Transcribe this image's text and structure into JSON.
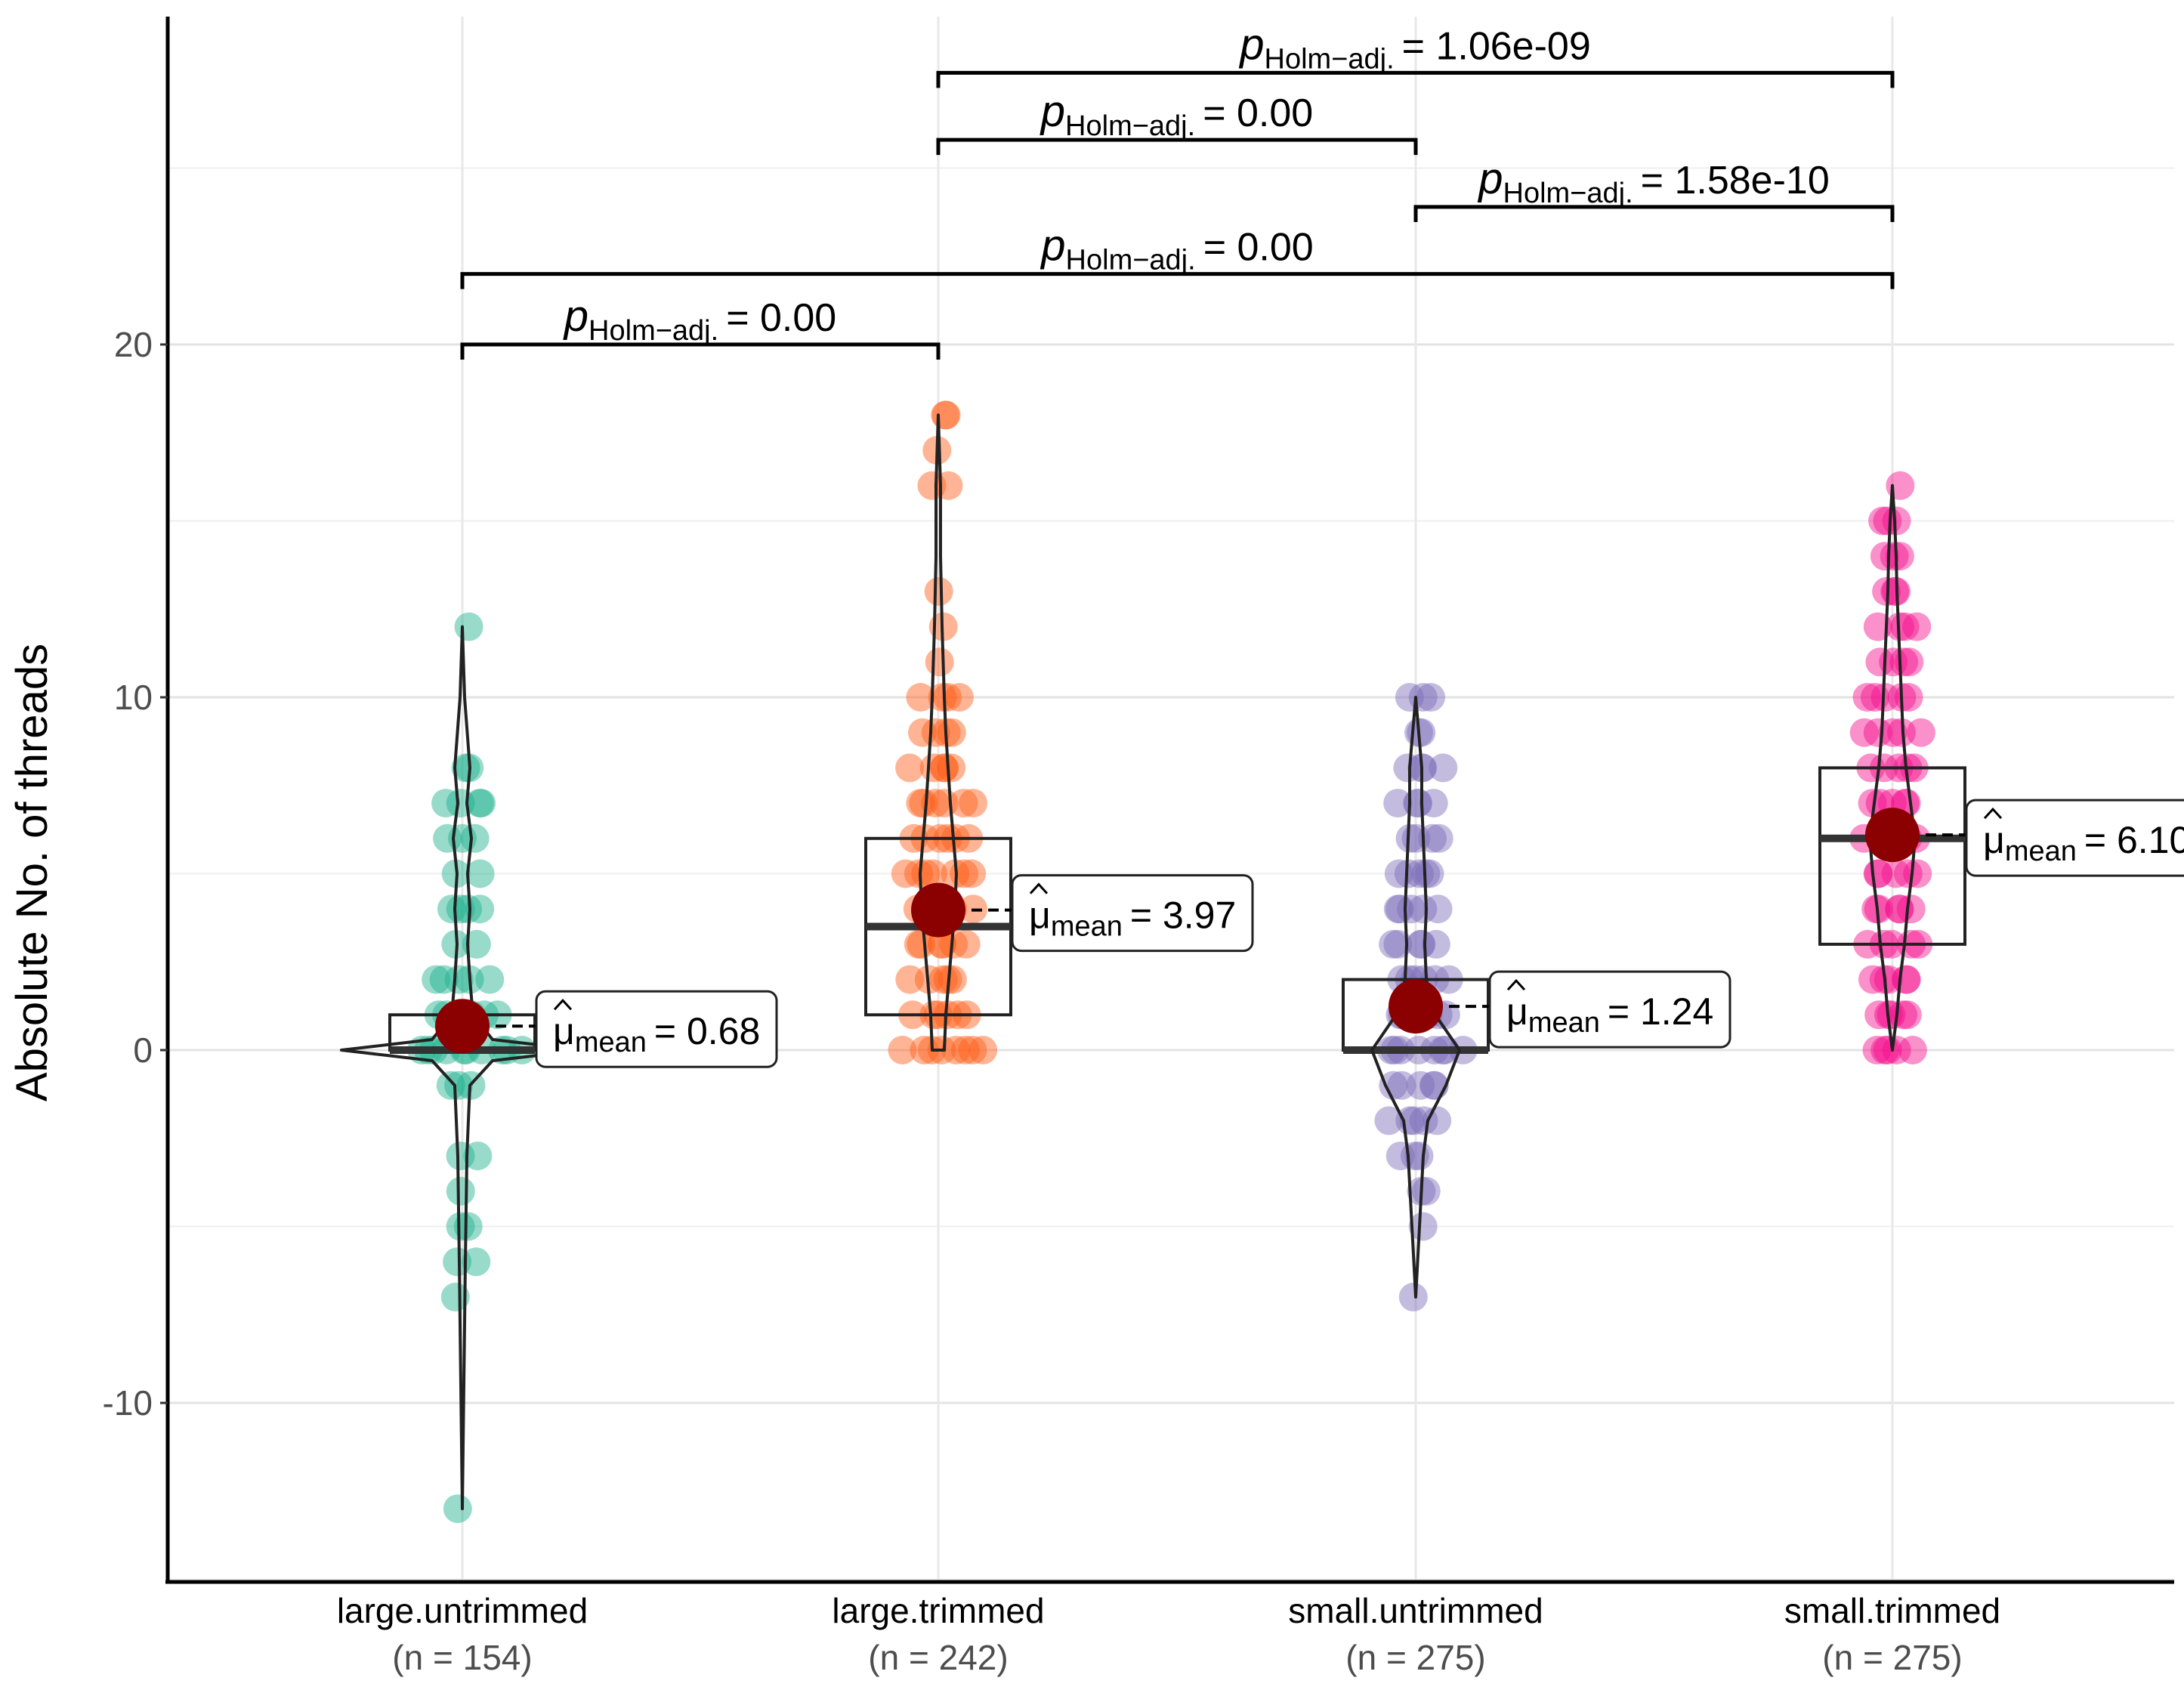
{
  "chart_data": {
    "type": "violin-box-scatter",
    "title": "",
    "xlabel": "",
    "ylabel": "Absolute No. of threads",
    "ylim": [
      -15,
      28
    ],
    "yticks": [
      -10,
      0,
      10,
      20
    ],
    "grid": true,
    "groups": [
      {
        "name": "large.untrimmed",
        "n_label": "(n = 154)",
        "color": "#1AAF8B",
        "mean": 0.68,
        "mean_label": "= 0.68",
        "box": {
          "q1": 0,
          "median": 0,
          "q3": 1,
          "whisker_low": -13,
          "whisker_high": 12
        },
        "points": [
          12,
          8,
          8,
          7,
          7,
          7,
          7,
          6,
          6,
          6,
          5,
          5,
          4,
          4,
          4,
          4,
          3,
          3,
          2,
          2,
          2,
          2,
          2,
          1,
          1,
          1,
          1,
          1,
          1,
          0,
          0,
          0,
          0,
          0,
          0,
          0,
          0,
          0,
          0,
          -1,
          -1,
          -1,
          -3,
          -3,
          -4,
          -5,
          -5,
          -6,
          -6,
          -7,
          -13
        ]
      },
      {
        "name": "large.trimmed",
        "n_label": "(n = 242)",
        "color": "#FF5A14",
        "mean": 3.97,
        "mean_label": "= 3.97",
        "box": {
          "q1": 1,
          "median": 3.5,
          "q3": 6,
          "whisker_low": 0,
          "whisker_high": 18
        },
        "points": [
          18,
          18,
          17,
          16,
          16,
          13,
          12,
          11,
          10,
          10,
          10,
          10,
          9,
          9,
          9,
          9,
          8,
          8,
          8,
          8,
          8,
          7,
          7,
          7,
          7,
          7,
          7,
          6,
          6,
          6,
          6,
          6,
          6,
          5,
          5,
          5,
          5,
          5,
          5,
          5,
          4,
          4,
          4,
          4,
          4,
          4,
          3,
          3,
          3,
          3,
          3,
          3,
          2,
          2,
          2,
          2,
          2,
          1,
          1,
          1,
          1,
          1,
          1,
          0,
          0,
          0,
          0,
          0,
          0,
          0,
          0
        ]
      },
      {
        "name": "small.untrimmed",
        "n_label": "(n = 275)",
        "color": "#7B6BB8",
        "mean": 1.24,
        "mean_label": "= 1.24",
        "box": {
          "q1": 0,
          "median": 0,
          "q3": 2,
          "whisker_low": -7,
          "whisker_high": 10
        },
        "points": [
          10,
          10,
          10,
          9,
          9,
          8,
          8,
          8,
          8,
          7,
          7,
          7,
          7,
          6,
          6,
          6,
          6,
          5,
          5,
          5,
          5,
          5,
          4,
          4,
          4,
          4,
          4,
          3,
          3,
          3,
          3,
          3,
          2,
          2,
          2,
          2,
          2,
          2,
          1,
          1,
          1,
          1,
          1,
          1,
          0,
          0,
          0,
          0,
          0,
          0,
          0,
          0,
          -1,
          -1,
          -1,
          -1,
          -1,
          -2,
          -2,
          -2,
          -2,
          -2,
          -3,
          -3,
          -3,
          -4,
          -4,
          -5,
          -7
        ]
      },
      {
        "name": "small.trimmed",
        "n_label": "(n = 275)",
        "color": "#F50A8C",
        "mean": 6.1,
        "mean_label": "= 6.10",
        "box": {
          "q1": 3,
          "median": 6,
          "q3": 8,
          "whisker_low": 0,
          "whisker_high": 16
        },
        "points": [
          16,
          15,
          15,
          15,
          14,
          14,
          14,
          13,
          13,
          13,
          12,
          12,
          12,
          12,
          11,
          11,
          11,
          11,
          10,
          10,
          10,
          10,
          10,
          9,
          9,
          9,
          9,
          9,
          8,
          8,
          8,
          8,
          8,
          7,
          7,
          7,
          7,
          7,
          6,
          6,
          6,
          6,
          6,
          5,
          5,
          5,
          5,
          5,
          4,
          4,
          4,
          4,
          4,
          3,
          3,
          3,
          3,
          3,
          2,
          2,
          2,
          2,
          2,
          1,
          1,
          1,
          1,
          1,
          0,
          0,
          0,
          0,
          0
        ]
      }
    ],
    "mean_symbol": "μ",
    "mean_subscript": "mean",
    "comparisons": [
      {
        "from": 0,
        "to": 1,
        "y": 20,
        "p_text": "= 0.00"
      },
      {
        "from": 0,
        "to": 3,
        "y": 22,
        "p_text": "= 0.00"
      },
      {
        "from": 2,
        "to": 3,
        "y": 23.9,
        "p_text": "= 1.58e-10"
      },
      {
        "from": 1,
        "to": 2,
        "y": 25.8,
        "p_text": "= 0.00"
      },
      {
        "from": 1,
        "to": 3,
        "y": 27.7,
        "p_text": "= 1.06e-09"
      }
    ],
    "p_symbol": "p",
    "p_subscript": "Holm−adj."
  }
}
